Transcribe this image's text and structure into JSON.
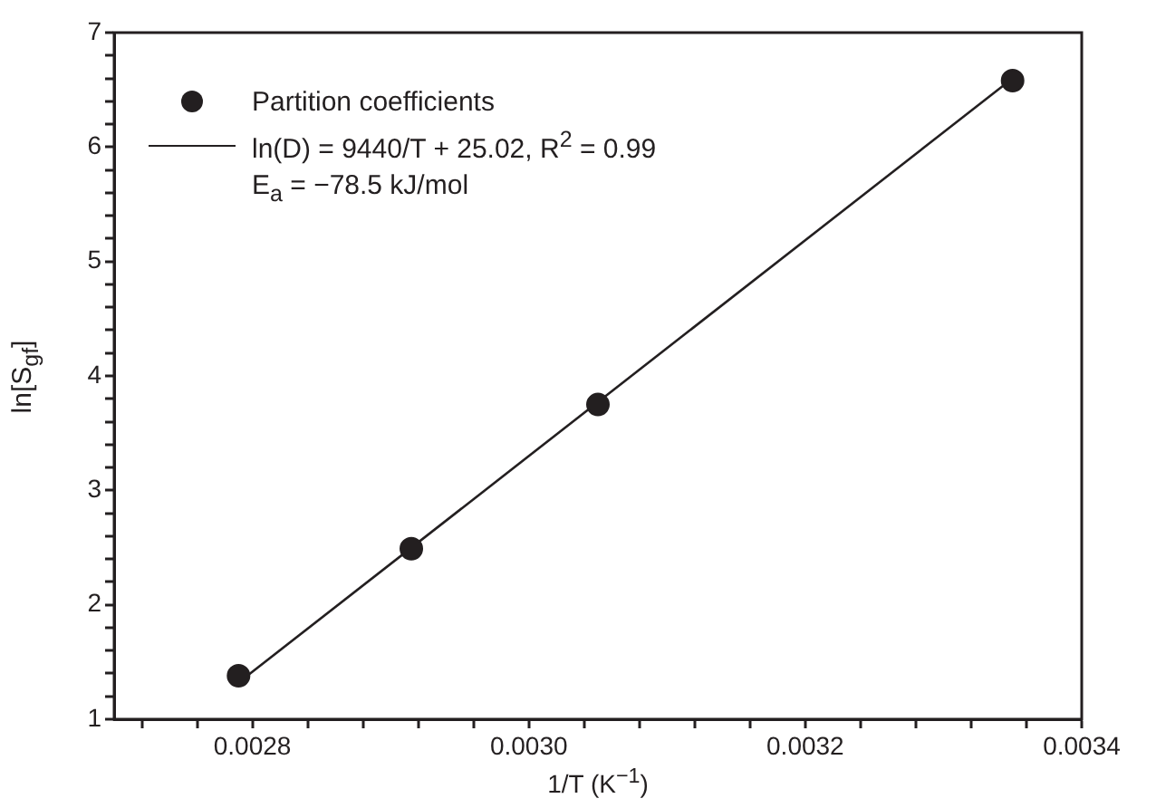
{
  "chart_data": {
    "type": "scatter",
    "xlabel": "1/T (K$^{−1}$)",
    "ylabel": "ln[S$_{gf}$]",
    "annotations": [
      "E$_{a}$ = −78.5 kJ/mol"
    ],
    "xlim": [
      0.0027,
      0.0034
    ],
    "xticks": [
      {
        "value": 0.00272,
        "label": null
      },
      {
        "value": 0.00276,
        "label": null
      },
      0.0028,
      {
        "value": 0.00284,
        "label": null
      },
      {
        "value": 0.00288,
        "label": null
      },
      {
        "value": 0.00292,
        "label": null
      },
      {
        "value": 0.00296,
        "label": null
      },
      {
        "value": 0.003,
        "label": "0.0030"
      },
      {
        "value": 0.00304,
        "label": null
      },
      {
        "value": 0.00308,
        "label": null
      },
      {
        "value": 0.00312,
        "label": null
      },
      {
        "value": 0.00316,
        "label": null
      },
      0.0032,
      {
        "value": 0.00324,
        "label": null
      },
      {
        "value": 0.00328,
        "label": null
      },
      {
        "value": 0.00332,
        "label": null
      },
      {
        "value": 0.00336,
        "label": null
      },
      0.0034
    ],
    "ylim": [
      1,
      7
    ],
    "yticks": [
      1,
      {
        "value": 1.2,
        "label": null
      },
      {
        "value": 1.4,
        "label": null
      },
      {
        "value": 1.6,
        "label": null
      },
      {
        "value": 1.8,
        "label": null
      },
      2,
      {
        "value": 2.2,
        "label": null
      },
      {
        "value": 2.4,
        "label": null
      },
      {
        "value": 2.6,
        "label": null
      },
      {
        "value": 2.8,
        "label": null
      },
      3,
      {
        "value": 3.2,
        "label": null
      },
      {
        "value": 3.4,
        "label": null
      },
      {
        "value": 3.6,
        "label": null
      },
      {
        "value": 3.8,
        "label": null
      },
      4,
      {
        "value": 4.2,
        "label": null
      },
      {
        "value": 4.4,
        "label": null
      },
      {
        "value": 4.6,
        "label": null
      },
      {
        "value": 4.8,
        "label": null
      },
      5,
      {
        "value": 5.2,
        "label": null
      },
      {
        "value": 5.4,
        "label": null
      },
      {
        "value": 5.6,
        "label": null
      },
      {
        "value": 5.8,
        "label": null
      },
      6,
      {
        "value": 6.2,
        "label": null
      },
      {
        "value": 6.4,
        "label": null
      },
      {
        "value": 6.6,
        "label": null
      },
      {
        "value": 6.8,
        "label": null
      },
      7
    ],
    "grid": false,
    "legend": "top left",
    "series": [
      {
        "name": "Partition coefficients",
        "type": "scatter",
        "marker": "circle",
        "color": "#231f20",
        "x": [
          0.00279,
          0.002915,
          0.00305,
          0.00335
        ],
        "values": [
          1.38,
          2.49,
          3.75,
          6.58
        ]
      },
      {
        "name": "ln(D) = 9440/T + 25.02, R$^{2}$ = 0.99",
        "type": "line",
        "marker": "none",
        "line_style": "solid",
        "color": "#231f20",
        "x": [
          0.00279,
          0.00335
        ],
        "values": [
          1.32,
          6.6
        ]
      }
    ]
  }
}
